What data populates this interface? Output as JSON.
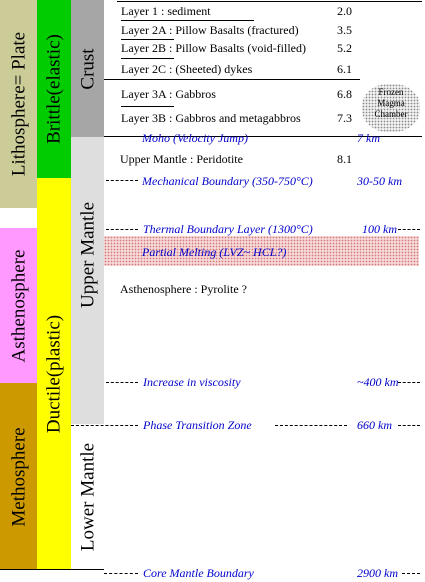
{
  "columns": {
    "lithosphere": "Lithosphere= Plate",
    "asthenosphere": "Asthenosphere",
    "methosphere": "Methosphere",
    "brittle": "Brittle(elastic)",
    "ductile": "Ductile(plastic)",
    "crust": "Crust",
    "upper_mantle": "Upper Mantle",
    "lower_mantle": "Lower Mantle"
  },
  "layers": [
    {
      "label": "Layer 1 : sediment",
      "value": "2.0"
    },
    {
      "label": "Layer 2A : Pillow Basalts (fractured)",
      "value": "3.5"
    },
    {
      "label": "Layer 2B : Pillow Basalts (void-filled)",
      "value": "5.2"
    },
    {
      "label": "Layer 2C : (Sheeted) dykes",
      "value": "6.1"
    },
    {
      "label": "Layer 3A : Gabbros",
      "value": "6.8"
    },
    {
      "label": "Layer 3B : Gabbros and metagabbros",
      "value": "7.3"
    },
    {
      "label": "Upper Mantle : Peridotite",
      "value": "8.1"
    }
  ],
  "chamber": {
    "line1": "Frozen",
    "line2": "Magma",
    "line3": "Chamber"
  },
  "boundaries": [
    {
      "label": "Moho  (Velocity Jump)",
      "depth": "7 km"
    },
    {
      "label": "Mechanical Boundary (350-750°C)",
      "depth": "30-50 km"
    },
    {
      "label": "Thermal Boundary Layer (1300°C)",
      "depth": "100 km"
    },
    {
      "label": "Partial Melting (LVZ~ HCL?)",
      "depth": ""
    },
    {
      "label": "Increase in viscosity",
      "depth": "~400 km"
    },
    {
      "label": "Phase Transition Zone",
      "depth": "660 km"
    },
    {
      "label": "Core Mantle Boundary",
      "depth": "2900 km"
    }
  ],
  "asthenosphere_text": "Asthenosphere : Pyrolite ?"
}
